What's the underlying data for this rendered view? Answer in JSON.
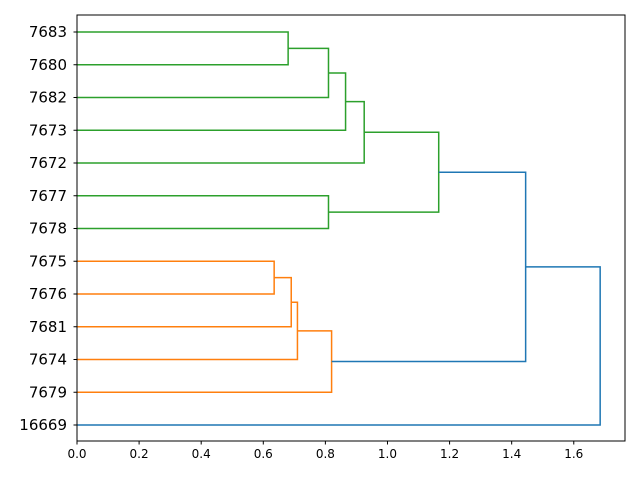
{
  "chart_data": {
    "type": "dendrogram",
    "orientation": "right",
    "leaves": [
      "7683",
      "7680",
      "7682",
      "7673",
      "7672",
      "7677",
      "7678",
      "7675",
      "7676",
      "7681",
      "7674",
      "7679",
      "16669"
    ],
    "xlim": [
      0.0,
      1.765
    ],
    "xticks": [
      0.0,
      0.2,
      0.4,
      0.6,
      0.8,
      1.0,
      1.2,
      1.4,
      1.6
    ],
    "xtick_labels": [
      "0.0",
      "0.2",
      "0.4",
      "0.6",
      "0.8",
      "1.0",
      "1.2",
      "1.4",
      "1.6"
    ],
    "colors": {
      "cluster_green": "#2ca02c",
      "cluster_orange": "#ff7f0e",
      "above_threshold": "#1f77b4"
    },
    "merges": [
      {
        "a": "7683",
        "b": "7680",
        "height": 0.68,
        "color": "cluster_green"
      },
      {
        "a": "m0",
        "b": "7682",
        "height": 0.81,
        "color": "cluster_green"
      },
      {
        "a": "m1",
        "b": "7673",
        "height": 0.865,
        "color": "cluster_green"
      },
      {
        "a": "m2",
        "b": "7672",
        "height": 0.925,
        "color": "cluster_green"
      },
      {
        "a": "7677",
        "b": "7678",
        "height": 0.81,
        "color": "cluster_green"
      },
      {
        "a": "m3",
        "b": "m4",
        "height": 1.165,
        "color": "cluster_green"
      },
      {
        "a": "7675",
        "b": "7676",
        "height": 0.635,
        "color": "cluster_orange"
      },
      {
        "a": "m6",
        "b": "7681",
        "height": 0.69,
        "color": "cluster_orange"
      },
      {
        "a": "m7",
        "b": "7674",
        "height": 0.71,
        "color": "cluster_orange"
      },
      {
        "a": "m8",
        "b": "7679",
        "height": 0.82,
        "color": "cluster_orange"
      },
      {
        "a": "m5",
        "b": "m9",
        "height": 1.445,
        "color": "above_threshold"
      },
      {
        "a": "m10",
        "b": "16669",
        "height": 1.685,
        "color": "above_threshold"
      }
    ],
    "title": "",
    "xlabel": "",
    "ylabel": "",
    "grid": false
  }
}
